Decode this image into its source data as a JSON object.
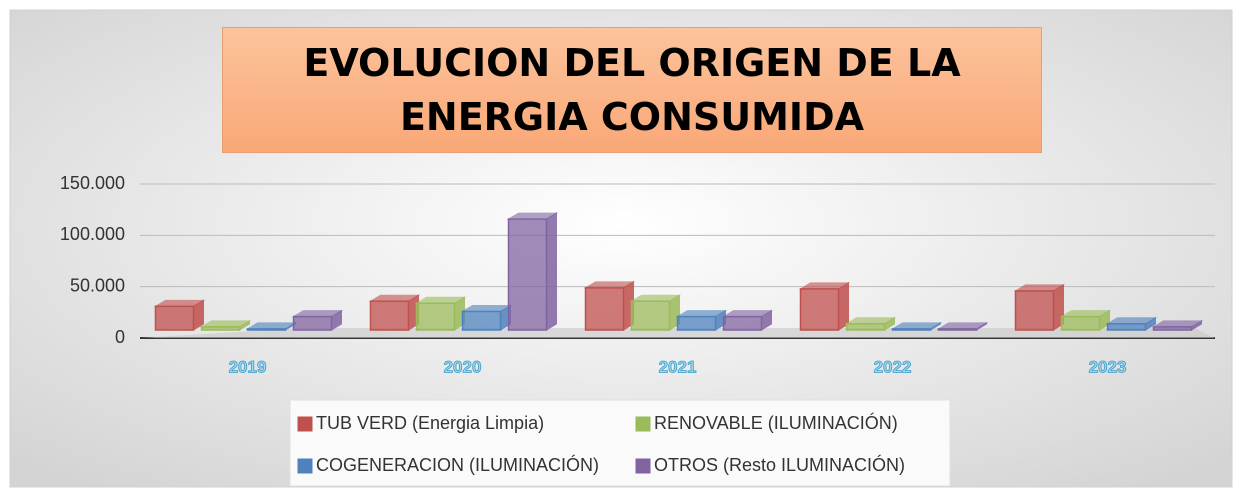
{
  "chart_data": {
    "type": "bar",
    "title": "EVOLUCION DEL ORIGEN DE LA ENERGIA CONSUMIDA",
    "categories": [
      "2019",
      "2020",
      "2021",
      "2022",
      "2023"
    ],
    "series": [
      {
        "name": "TUB VERD (Energia Limpia)",
        "color": "#c0504d",
        "values": [
          25000,
          30000,
          43000,
          42000,
          40000
        ]
      },
      {
        "name": "RENOVABLE (ILUMINACIÓN)",
        "color": "#9bbb59",
        "values": [
          5000,
          28000,
          30000,
          8000,
          15000
        ]
      },
      {
        "name": "COGENERACION (ILUMINACIÓN)",
        "color": "#4f81bd",
        "values": [
          3000,
          20000,
          15000,
          3000,
          8000
        ]
      },
      {
        "name": "OTROS (Resto ILUMINACIÓN)",
        "color": "#8064a2",
        "values": [
          15000,
          110000,
          15000,
          3000,
          5000
        ]
      }
    ],
    "ylim": [
      0,
      150000
    ],
    "yticks": [
      0,
      {
        "value": 50000,
        "label": "50.000"
      },
      {
        "value": 100000,
        "label": "100.000"
      },
      {
        "value": 150000,
        "label": "150.000"
      }
    ],
    "grid": true,
    "legend": "bottom"
  }
}
